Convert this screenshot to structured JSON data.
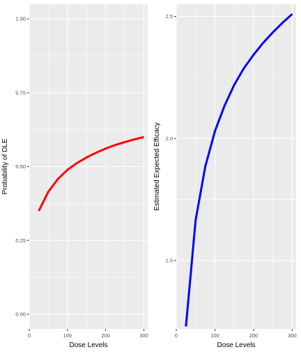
{
  "chart_data": [
    {
      "type": "line",
      "xlabel": "Dose Levels",
      "ylabel": "Probability of DLE",
      "xlim": [
        0,
        310
      ],
      "ylim": [
        -0.05,
        1.05
      ],
      "xticks": [
        0,
        100,
        200,
        300
      ],
      "yticks": [
        0.0,
        0.25,
        0.5,
        0.75,
        1.0
      ],
      "ytick_labels": [
        "0.00",
        "0.25",
        "0.50",
        "0.75",
        "1.00"
      ],
      "grid": true,
      "colors": {
        "panel": "#ebebeb",
        "grid": "#ffffff",
        "line": "#ff0000"
      },
      "series": [
        {
          "x": [
            25,
            50,
            75,
            100,
            125,
            150,
            175,
            200,
            225,
            250,
            275,
            300
          ],
          "values": [
            0.35,
            0.415,
            0.458,
            0.489,
            0.512,
            0.531,
            0.547,
            0.561,
            0.573,
            0.583,
            0.592,
            0.6
          ]
        }
      ]
    },
    {
      "type": "line",
      "xlabel": "Dose Levels",
      "ylabel": "Estimated Expected Efficacy",
      "xlim": [
        0,
        310
      ],
      "ylim": [
        1.22,
        2.55
      ],
      "xticks": [
        0,
        100,
        200,
        300
      ],
      "yticks": [
        1.5,
        2.0,
        2.5
      ],
      "ytick_labels": [
        "1.5",
        "2.0",
        "2.5"
      ],
      "grid": true,
      "colors": {
        "panel": "#ebebeb",
        "grid": "#ffffff",
        "line": "#0000ff"
      },
      "series": [
        {
          "x": [
            25,
            50,
            75,
            100,
            125,
            150,
            175,
            200,
            225,
            250,
            275,
            300
          ],
          "values": [
            1.23,
            1.665,
            1.885,
            2.03,
            2.135,
            2.22,
            2.288,
            2.343,
            2.392,
            2.435,
            2.474,
            2.51
          ]
        }
      ]
    }
  ]
}
